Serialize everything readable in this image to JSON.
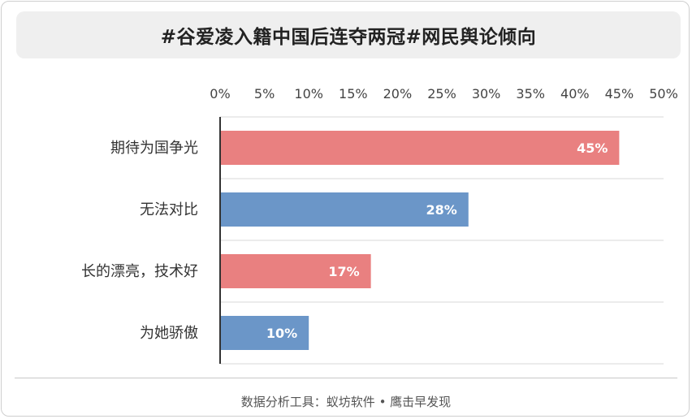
{
  "title": "#谷爱凌入籍中国后连夺两冠#网民舆论倾向",
  "footer": "数据分析工具：蚁坊软件 • 鹰击早发现",
  "chart_data": {
    "type": "bar",
    "orientation": "horizontal",
    "categories": [
      "期待为国争光",
      "无法对比",
      "长的漂亮，技术好",
      "为她骄傲"
    ],
    "values": [
      45,
      28,
      17,
      10
    ],
    "value_labels": [
      "45%",
      "28%",
      "17%",
      "10%"
    ],
    "colors": [
      "#e98080",
      "#6b96c8",
      "#e98080",
      "#6b96c8"
    ],
    "xlim": [
      0,
      50
    ],
    "xticks": [
      0,
      5,
      10,
      15,
      20,
      25,
      30,
      35,
      40,
      45,
      50
    ],
    "xtick_labels": [
      "0%",
      "5%",
      "10%",
      "15%",
      "20%",
      "25%",
      "30%",
      "35%",
      "40%",
      "45%",
      "50%"
    ],
    "axis_position": "top",
    "grid": true
  }
}
